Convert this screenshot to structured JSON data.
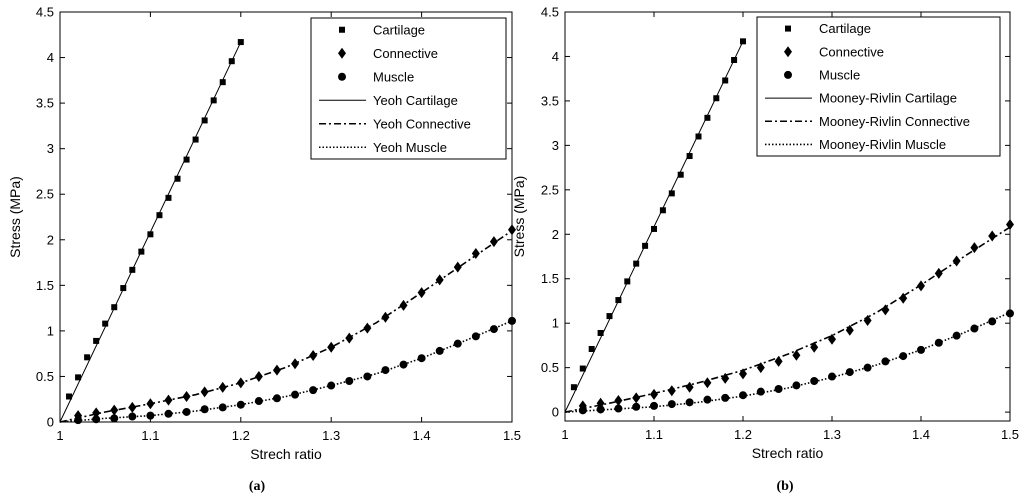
{
  "figure": {
    "panel_labels": [
      "(a)",
      "(b)"
    ]
  },
  "chart_data": [
    {
      "type": "line",
      "panel": "(a)",
      "xlabel": "Strech ratio",
      "ylabel": "Stress (MPa)",
      "xlim": [
        1,
        1.5
      ],
      "ylim": [
        0,
        4.5
      ],
      "xticks": [
        1,
        1.1,
        1.2,
        1.3,
        1.4,
        1.5
      ],
      "xtick_labels": [
        "1",
        "1.1",
        "1.2",
        "1.3",
        "1.4",
        "1.5"
      ],
      "yticks": [
        0,
        0.5,
        1,
        1.5,
        2,
        2.5,
        3,
        3.5,
        4,
        4.5
      ],
      "ytick_labels": [
        "0",
        "0.5",
        "1",
        "1.5",
        "2",
        "2.5",
        "3",
        "3.5",
        "4",
        "4.5"
      ],
      "legend_position": "top-right",
      "series": [
        {
          "name": "Cartilage",
          "kind": "markers",
          "marker": "square",
          "x": [
            1.01,
            1.02,
            1.03,
            1.04,
            1.05,
            1.06,
            1.07,
            1.08,
            1.09,
            1.1,
            1.11,
            1.12,
            1.13,
            1.14,
            1.15,
            1.16,
            1.17,
            1.18,
            1.19,
            1.2
          ],
          "y": [
            0.28,
            0.49,
            0.71,
            0.89,
            1.08,
            1.26,
            1.47,
            1.67,
            1.87,
            2.06,
            2.27,
            2.46,
            2.67,
            2.88,
            3.1,
            3.31,
            3.53,
            3.73,
            3.96,
            4.17
          ]
        },
        {
          "name": "Connective",
          "kind": "markers",
          "marker": "diamond",
          "x": [
            1.02,
            1.04,
            1.06,
            1.08,
            1.1,
            1.12,
            1.14,
            1.16,
            1.18,
            1.2,
            1.22,
            1.24,
            1.26,
            1.28,
            1.3,
            1.32,
            1.34,
            1.36,
            1.38,
            1.4,
            1.42,
            1.44,
            1.46,
            1.48,
            1.5
          ],
          "y": [
            0.07,
            0.1,
            0.13,
            0.16,
            0.2,
            0.24,
            0.28,
            0.33,
            0.38,
            0.43,
            0.5,
            0.57,
            0.64,
            0.73,
            0.82,
            0.92,
            1.03,
            1.15,
            1.28,
            1.42,
            1.56,
            1.7,
            1.85,
            1.98,
            2.11
          ]
        },
        {
          "name": "Muscle",
          "kind": "markers",
          "marker": "circle",
          "x": [
            1.02,
            1.04,
            1.06,
            1.08,
            1.1,
            1.12,
            1.14,
            1.16,
            1.18,
            1.2,
            1.22,
            1.24,
            1.26,
            1.28,
            1.3,
            1.32,
            1.34,
            1.36,
            1.38,
            1.4,
            1.42,
            1.44,
            1.46,
            1.48,
            1.5
          ],
          "y": [
            0.02,
            0.03,
            0.04,
            0.06,
            0.07,
            0.09,
            0.11,
            0.14,
            0.16,
            0.19,
            0.23,
            0.26,
            0.3,
            0.35,
            0.4,
            0.45,
            0.5,
            0.57,
            0.63,
            0.7,
            0.78,
            0.86,
            0.94,
            1.02,
            1.11
          ]
        },
        {
          "name": "Yeoh Cartilage",
          "kind": "line",
          "dash": "solid",
          "x": [
            1.0,
            1.2
          ],
          "y": [
            0.0,
            4.17
          ]
        },
        {
          "name": "Yeoh Connective",
          "kind": "line",
          "dash": "dashdot",
          "x": [
            1.0,
            1.05,
            1.1,
            1.15,
            1.2,
            1.25,
            1.3,
            1.35,
            1.4,
            1.45,
            1.5
          ],
          "y": [
            0.0,
            0.11,
            0.2,
            0.3,
            0.43,
            0.6,
            0.82,
            1.09,
            1.42,
            1.76,
            2.1
          ]
        },
        {
          "name": "Yeoh Muscle",
          "kind": "line",
          "dash": "dotted",
          "x": [
            1.0,
            1.05,
            1.1,
            1.15,
            1.2,
            1.25,
            1.3,
            1.35,
            1.4,
            1.45,
            1.5
          ],
          "y": [
            0.0,
            0.04,
            0.07,
            0.12,
            0.19,
            0.28,
            0.4,
            0.53,
            0.7,
            0.9,
            1.11
          ]
        }
      ]
    },
    {
      "type": "line",
      "panel": "(b)",
      "xlabel": "Strech ratio",
      "ylabel": "Stress (MPa)",
      "xlim": [
        1,
        1.5
      ],
      "ylim": [
        -0.1,
        4.5
      ],
      "xticks": [
        1,
        1.1,
        1.2,
        1.3,
        1.4,
        1.5
      ],
      "xtick_labels": [
        "1",
        "1.1",
        "1.2",
        "1.3",
        "1.4",
        "1.5"
      ],
      "yticks": [
        0,
        0.5,
        1,
        1.5,
        2,
        2.5,
        3,
        3.5,
        4,
        4.5
      ],
      "ytick_labels": [
        "0",
        "0.5",
        "1",
        "1.5",
        "2",
        "2.5",
        "3",
        "3.5",
        "4",
        "4.5"
      ],
      "legend_position": "top-right",
      "series": [
        {
          "name": "Cartilage",
          "kind": "markers",
          "marker": "square",
          "x": [
            1.01,
            1.02,
            1.03,
            1.04,
            1.05,
            1.06,
            1.07,
            1.08,
            1.09,
            1.1,
            1.11,
            1.12,
            1.13,
            1.14,
            1.15,
            1.16,
            1.17,
            1.18,
            1.19,
            1.2
          ],
          "y": [
            0.28,
            0.49,
            0.71,
            0.89,
            1.08,
            1.26,
            1.47,
            1.67,
            1.87,
            2.06,
            2.27,
            2.46,
            2.67,
            2.88,
            3.1,
            3.31,
            3.53,
            3.73,
            3.96,
            4.17
          ]
        },
        {
          "name": "Connective",
          "kind": "markers",
          "marker": "diamond",
          "x": [
            1.02,
            1.04,
            1.06,
            1.08,
            1.1,
            1.12,
            1.14,
            1.16,
            1.18,
            1.2,
            1.22,
            1.24,
            1.26,
            1.28,
            1.3,
            1.32,
            1.34,
            1.36,
            1.38,
            1.4,
            1.42,
            1.44,
            1.46,
            1.48,
            1.5
          ],
          "y": [
            0.07,
            0.1,
            0.13,
            0.16,
            0.2,
            0.24,
            0.28,
            0.33,
            0.38,
            0.43,
            0.5,
            0.57,
            0.64,
            0.73,
            0.82,
            0.92,
            1.03,
            1.15,
            1.28,
            1.42,
            1.56,
            1.7,
            1.85,
            1.98,
            2.11
          ]
        },
        {
          "name": "Muscle",
          "kind": "markers",
          "marker": "circle",
          "x": [
            1.02,
            1.04,
            1.06,
            1.08,
            1.1,
            1.12,
            1.14,
            1.16,
            1.18,
            1.2,
            1.22,
            1.24,
            1.26,
            1.28,
            1.3,
            1.32,
            1.34,
            1.36,
            1.38,
            1.4,
            1.42,
            1.44,
            1.46,
            1.48,
            1.5
          ],
          "y": [
            0.02,
            0.03,
            0.04,
            0.06,
            0.07,
            0.09,
            0.11,
            0.14,
            0.16,
            0.19,
            0.23,
            0.26,
            0.3,
            0.35,
            0.4,
            0.45,
            0.5,
            0.57,
            0.63,
            0.7,
            0.78,
            0.86,
            0.94,
            1.02,
            1.11
          ]
        },
        {
          "name": "Mooney-Rivlin Cartilage",
          "kind": "line",
          "dash": "solid",
          "x": [
            1.0,
            1.2
          ],
          "y": [
            0.0,
            4.17
          ]
        },
        {
          "name": "Mooney-Rivlin Connective",
          "kind": "line",
          "dash": "dashdot",
          "x": [
            1.0,
            1.05,
            1.1,
            1.15,
            1.2,
            1.25,
            1.3,
            1.35,
            1.4,
            1.45,
            1.5
          ],
          "y": [
            0.0,
            0.1,
            0.21,
            0.33,
            0.47,
            0.65,
            0.86,
            1.12,
            1.43,
            1.76,
            2.08
          ]
        },
        {
          "name": "Mooney-Rivlin Muscle",
          "kind": "line",
          "dash": "dotted",
          "x": [
            1.0,
            1.05,
            1.1,
            1.15,
            1.2,
            1.25,
            1.3,
            1.35,
            1.4,
            1.45,
            1.5
          ],
          "y": [
            0.0,
            0.03,
            0.06,
            0.11,
            0.18,
            0.27,
            0.39,
            0.53,
            0.7,
            0.9,
            1.12
          ]
        }
      ]
    }
  ]
}
